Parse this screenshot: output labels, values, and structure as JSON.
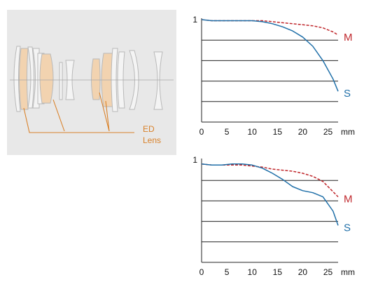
{
  "lens_diagram": {
    "ed_label_line1": "ED",
    "ed_label_line2": "Lens",
    "ed_color": "#d9822b",
    "ed_fill": "#f2d3b0",
    "element_fill": "#f4f4f4",
    "element_stroke": "#b9b9b9"
  },
  "chart_data": [
    {
      "type": "line",
      "title": "",
      "xlabel": "",
      "ylabel": "",
      "x_unit": "mm",
      "xlim": [
        0,
        27
      ],
      "ylim": [
        0,
        1
      ],
      "x_ticks": [
        "0",
        "5",
        "10",
        "15",
        "20",
        "25"
      ],
      "y_ticks": [
        "1"
      ],
      "grid": "horizontal",
      "series": [
        {
          "name": "M",
          "color": "#c0282d",
          "style": "dashed",
          "x": [
            0,
            2,
            4,
            6,
            8,
            10,
            12,
            14,
            16,
            18,
            20,
            22,
            24,
            26,
            27
          ],
          "y": [
            1.0,
            0.99,
            0.99,
            0.99,
            0.99,
            0.99,
            0.99,
            0.98,
            0.97,
            0.96,
            0.95,
            0.94,
            0.92,
            0.88,
            0.85
          ]
        },
        {
          "name": "S",
          "color": "#1f6fa8",
          "style": "solid",
          "x": [
            0,
            2,
            4,
            6,
            8,
            10,
            12,
            14,
            16,
            18,
            20,
            22,
            24,
            26,
            27
          ],
          "y": [
            1.0,
            0.99,
            0.99,
            0.99,
            0.99,
            0.99,
            0.98,
            0.96,
            0.93,
            0.89,
            0.83,
            0.74,
            0.6,
            0.42,
            0.3
          ]
        }
      ]
    },
    {
      "type": "line",
      "title": "",
      "xlabel": "",
      "ylabel": "",
      "x_unit": "mm",
      "xlim": [
        0,
        27
      ],
      "ylim": [
        0,
        1
      ],
      "x_ticks": [
        "0",
        "5",
        "10",
        "15",
        "20",
        "25"
      ],
      "y_ticks": [
        "1"
      ],
      "grid": "horizontal",
      "series": [
        {
          "name": "M",
          "color": "#c0282d",
          "style": "dashed",
          "x": [
            0,
            2,
            4,
            6,
            8,
            10,
            12,
            14,
            16,
            18,
            20,
            22,
            24,
            26,
            27
          ],
          "y": [
            0.96,
            0.95,
            0.95,
            0.95,
            0.95,
            0.94,
            0.93,
            0.91,
            0.9,
            0.89,
            0.87,
            0.84,
            0.79,
            0.69,
            0.64
          ]
        },
        {
          "name": "S",
          "color": "#1f6fa8",
          "style": "solid",
          "x": [
            0,
            2,
            4,
            6,
            8,
            10,
            12,
            14,
            16,
            18,
            20,
            22,
            24,
            26,
            27
          ],
          "y": [
            0.96,
            0.95,
            0.95,
            0.96,
            0.96,
            0.95,
            0.92,
            0.87,
            0.81,
            0.74,
            0.7,
            0.68,
            0.64,
            0.5,
            0.36
          ]
        }
      ]
    }
  ]
}
